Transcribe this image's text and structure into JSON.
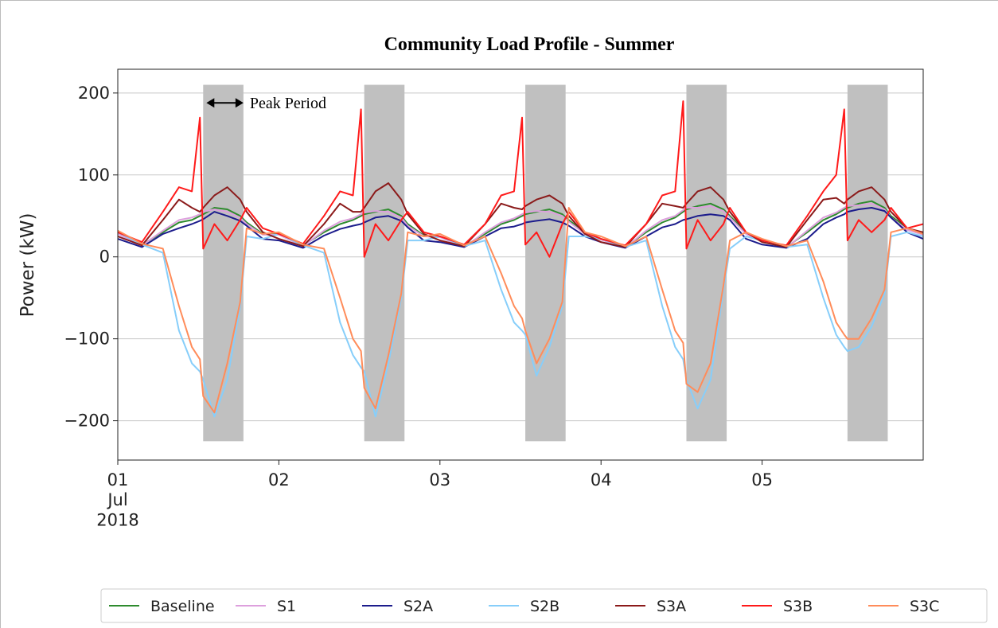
{
  "chart_data": {
    "type": "line",
    "title": "Community Load Profile - Summer",
    "y_label": "Power (kW)",
    "x": [
      1,
      1.15,
      1.28,
      1.38,
      1.46,
      1.51,
      1.53,
      1.6,
      1.68,
      1.76,
      1.8,
      1.9,
      2,
      2.15,
      2.28,
      2.38,
      2.46,
      2.51,
      2.53,
      2.6,
      2.68,
      2.76,
      2.8,
      2.9,
      3,
      3.15,
      3.28,
      3.38,
      3.46,
      3.51,
      3.53,
      3.6,
      3.68,
      3.76,
      3.8,
      3.9,
      4,
      4.15,
      4.28,
      4.38,
      4.46,
      4.51,
      4.53,
      4.6,
      4.68,
      4.76,
      4.8,
      4.9,
      5,
      5.15,
      5.28,
      5.38,
      5.46,
      5.51,
      5.53,
      5.6,
      5.68,
      5.76,
      5.8,
      5.9,
      6
    ],
    "xlim": [
      1,
      6
    ],
    "ylim": [
      -248,
      229
    ],
    "xticks": [
      {
        "value": 1,
        "label": "01\nJul\n2018"
      },
      {
        "value": 2,
        "label": "02"
      },
      {
        "value": 3,
        "label": "03"
      },
      {
        "value": 4,
        "label": "04"
      },
      {
        "value": 5,
        "label": "05"
      }
    ],
    "yticks": [
      {
        "value": 200,
        "label": "200"
      },
      {
        "value": 100,
        "label": "100"
      },
      {
        "value": 0,
        "label": "0"
      },
      {
        "value": -100,
        "label": "−100"
      },
      {
        "value": -200,
        "label": "−200"
      }
    ],
    "grid": true,
    "legend": "bottom",
    "shaded_regions": [
      [
        1.53,
        1.78
      ],
      [
        2.53,
        2.78
      ],
      [
        3.53,
        3.78
      ],
      [
        4.53,
        4.78
      ],
      [
        5.53,
        5.78
      ]
    ],
    "shaded_range": [
      -225,
      210
    ],
    "shaded_color": "#c0c0c0",
    "annotation": {
      "text": "Peak Period",
      "x": [
        1.55,
        1.78
      ],
      "y": 188
    },
    "series": [
      {
        "name": "Baseline",
        "color": "#2e8b2e",
        "values": [
          30,
          15,
          30,
          42,
          45,
          50,
          52,
          60,
          58,
          50,
          42,
          28,
          28,
          14,
          30,
          40,
          45,
          50,
          52,
          55,
          58,
          50,
          40,
          26,
          25,
          13,
          28,
          40,
          45,
          50,
          52,
          55,
          58,
          52,
          45,
          30,
          22,
          12,
          30,
          42,
          48,
          55,
          58,
          62,
          65,
          58,
          50,
          30,
          20,
          12,
          30,
          45,
          52,
          58,
          60,
          65,
          68,
          60,
          50,
          35,
          28
        ]
      },
      {
        "name": "S1",
        "color": "#dda0dd",
        "values": [
          28,
          14,
          32,
          45,
          48,
          52,
          55,
          58,
          55,
          48,
          40,
          27,
          27,
          13,
          32,
          43,
          47,
          52,
          54,
          56,
          55,
          48,
          38,
          25,
          24,
          12,
          30,
          42,
          47,
          52,
          54,
          56,
          55,
          50,
          43,
          28,
          21,
          11,
          32,
          45,
          50,
          57,
          60,
          60,
          62,
          56,
          48,
          28,
          19,
          11,
          32,
          48,
          54,
          60,
          62,
          63,
          65,
          58,
          48,
          33,
          27
        ]
      },
      {
        "name": "S2A",
        "color": "#1c1c8c",
        "values": [
          22,
          12,
          28,
          35,
          40,
          44,
          46,
          55,
          50,
          44,
          38,
          22,
          20,
          11,
          26,
          34,
          38,
          40,
          42,
          48,
          50,
          44,
          36,
          20,
          18,
          12,
          25,
          35,
          37,
          40,
          42,
          44,
          46,
          42,
          38,
          25,
          18,
          11,
          25,
          36,
          40,
          45,
          46,
          50,
          52,
          50,
          45,
          22,
          15,
          11,
          22,
          40,
          48,
          52,
          55,
          58,
          60,
          56,
          48,
          30,
          22
        ]
      },
      {
        "name": "S2B",
        "color": "#87cefa",
        "values": [
          30,
          15,
          5,
          -90,
          -130,
          -140,
          -150,
          -195,
          -150,
          -60,
          25,
          22,
          28,
          14,
          5,
          -80,
          -120,
          -135,
          -140,
          -195,
          -130,
          -50,
          20,
          20,
          25,
          13,
          20,
          -40,
          -80,
          -90,
          -95,
          -145,
          -110,
          -60,
          25,
          25,
          22,
          12,
          20,
          -60,
          -110,
          -125,
          -150,
          -185,
          -150,
          -40,
          10,
          25,
          20,
          12,
          15,
          -50,
          -95,
          -110,
          -115,
          -110,
          -85,
          -45,
          25,
          30,
          25
        ]
      },
      {
        "name": "S3A",
        "color": "#8b1a1a",
        "values": [
          25,
          14,
          45,
          70,
          60,
          55,
          60,
          75,
          85,
          70,
          55,
          30,
          22,
          13,
          40,
          65,
          55,
          55,
          60,
          80,
          90,
          70,
          52,
          28,
          20,
          13,
          40,
          65,
          60,
          58,
          62,
          70,
          75,
          65,
          50,
          28,
          18,
          12,
          40,
          65,
          62,
          60,
          65,
          80,
          85,
          70,
          55,
          30,
          18,
          12,
          45,
          70,
          72,
          65,
          70,
          80,
          85,
          70,
          55,
          35,
          30
        ]
      },
      {
        "name": "S3B",
        "color": "#ff1a1a",
        "values": [
          30,
          18,
          55,
          85,
          80,
          170,
          10,
          40,
          20,
          45,
          60,
          35,
          28,
          16,
          50,
          80,
          75,
          180,
          0,
          40,
          20,
          45,
          55,
          30,
          25,
          15,
          40,
          75,
          80,
          170,
          15,
          30,
          0,
          40,
          55,
          30,
          22,
          14,
          40,
          75,
          80,
          190,
          10,
          45,
          20,
          40,
          60,
          30,
          20,
          14,
          50,
          80,
          100,
          180,
          20,
          45,
          30,
          45,
          60,
          35,
          40
        ]
      },
      {
        "name": "S3C",
        "color": "#ff8c5a",
        "values": [
          32,
          16,
          10,
          -60,
          -110,
          -125,
          -170,
          -190,
          -130,
          -55,
          35,
          28,
          30,
          15,
          10,
          -50,
          -100,
          -115,
          -160,
          -185,
          -120,
          -45,
          30,
          25,
          28,
          14,
          25,
          -20,
          -60,
          -75,
          -90,
          -130,
          -100,
          -55,
          60,
          30,
          25,
          13,
          25,
          -40,
          -90,
          -105,
          -155,
          -165,
          -130,
          -35,
          20,
          30,
          22,
          13,
          20,
          -30,
          -80,
          -95,
          -100,
          -100,
          -75,
          -40,
          30,
          35,
          28
        ]
      }
    ]
  }
}
